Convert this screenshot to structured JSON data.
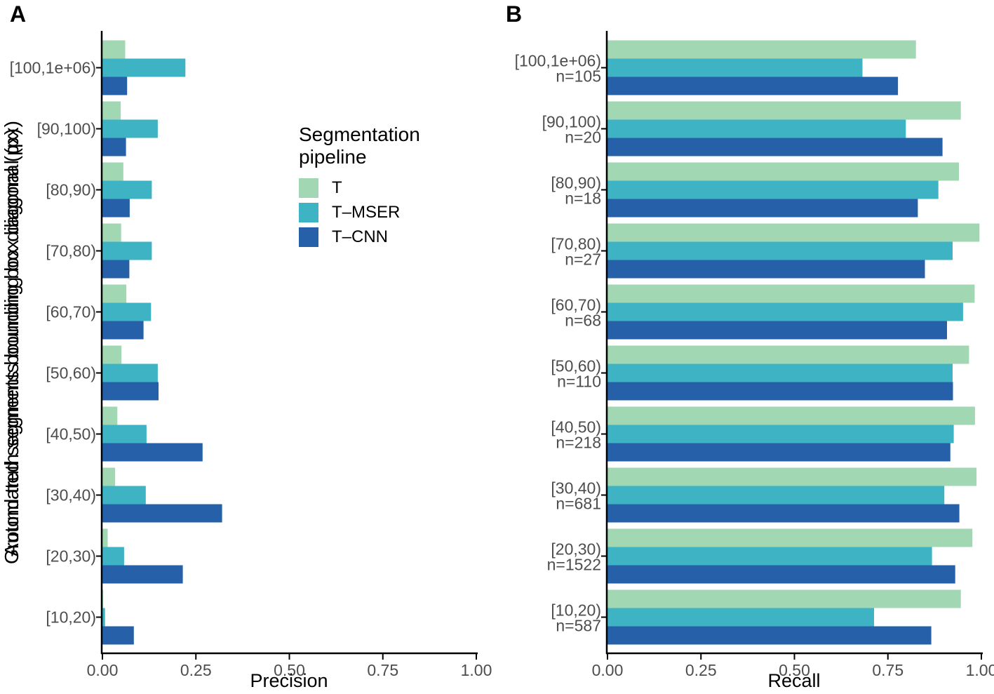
{
  "panels": [
    {
      "label": "A"
    },
    {
      "label": "B"
    }
  ],
  "legend": {
    "title_lines": [
      "Segmentation",
      "pipeline"
    ],
    "items": [
      {
        "label": "T",
        "color": "#a1d7b3"
      },
      {
        "label": "T–MSER",
        "color": "#3eb3c4"
      },
      {
        "label": "T–CNN",
        "color": "#2660a9"
      }
    ]
  },
  "colors": {
    "axis_line": "#000000",
    "tick_label": "#4d4d4d",
    "series_t": "#a1d7b3",
    "series_t_mser": "#3eb3c4",
    "series_t_cnn": "#2660a9"
  },
  "chart_data": [
    {
      "type": "bar",
      "orientation": "horizontal",
      "panel": "A",
      "xlabel": "Precision",
      "ylabel": "Automated segments bounding box diagonal (px)",
      "xlim": [
        0,
        1
      ],
      "xticks": [
        0,
        0.25,
        0.5,
        0.75,
        1
      ],
      "xtick_labels": [
        "0.00",
        "0.25",
        "0.50",
        "0.75",
        "1.00"
      ],
      "grid": false,
      "legend_position": "right",
      "categories": [
        "[100,1e+06)",
        "[90,100)",
        "[80,90)",
        "[70,80)",
        "[60,70)",
        "[50,60)",
        "[40,50)",
        "[30,40)",
        "[20,30)",
        "[10,20)"
      ],
      "series": [
        {
          "name": "T",
          "color": "#a1d7b3",
          "values": [
            0.061,
            0.049,
            0.056,
            0.05,
            0.064,
            0.051,
            0.04,
            0.034,
            0.014,
            0.002
          ]
        },
        {
          "name": "T–MSER",
          "color": "#3eb3c4",
          "values": [
            0.222,
            0.148,
            0.132,
            0.132,
            0.13,
            0.148,
            0.118,
            0.116,
            0.058,
            0.007
          ]
        },
        {
          "name": "T–CNN",
          "color": "#2660a9",
          "values": [
            0.066,
            0.063,
            0.073,
            0.072,
            0.11,
            0.15,
            0.268,
            0.32,
            0.215,
            0.084
          ]
        }
      ]
    },
    {
      "type": "bar",
      "orientation": "horizontal",
      "panel": "B",
      "xlabel": "Recall",
      "ylabel": "Ground truth segments bounding box diagonal (px)",
      "xlim": [
        0,
        1
      ],
      "xticks": [
        0,
        0.25,
        0.5,
        0.75,
        1
      ],
      "xtick_labels": [
        "0.00",
        "0.25",
        "0.50",
        "0.75",
        "1.00"
      ],
      "grid": false,
      "legend_position": "none",
      "categories": [
        "[100,1e+06)",
        "[90,100)",
        "[80,90)",
        "[70,80)",
        "[60,70)",
        "[50,60)",
        "[40,50)",
        "[30,40)",
        "[20,30)",
        "[10,20)"
      ],
      "category_sublabels": [
        "n=105",
        "n=20",
        "n=18",
        "n=27",
        "n=68",
        "n=110",
        "n=218",
        "n=681",
        "n=1522",
        "n=587"
      ],
      "series": [
        {
          "name": "T",
          "color": "#a1d7b3",
          "values": [
            0.825,
            0.945,
            0.94,
            0.995,
            0.982,
            0.967,
            0.983,
            0.987,
            0.976,
            0.945
          ]
        },
        {
          "name": "T–MSER",
          "color": "#3eb3c4",
          "values": [
            0.682,
            0.798,
            0.885,
            0.923,
            0.951,
            0.923,
            0.926,
            0.901,
            0.868,
            0.713
          ]
        },
        {
          "name": "T–CNN",
          "color": "#2660a9",
          "values": [
            0.777,
            0.896,
            0.83,
            0.849,
            0.908,
            0.924,
            0.917,
            0.941,
            0.93,
            0.866
          ]
        }
      ]
    }
  ]
}
